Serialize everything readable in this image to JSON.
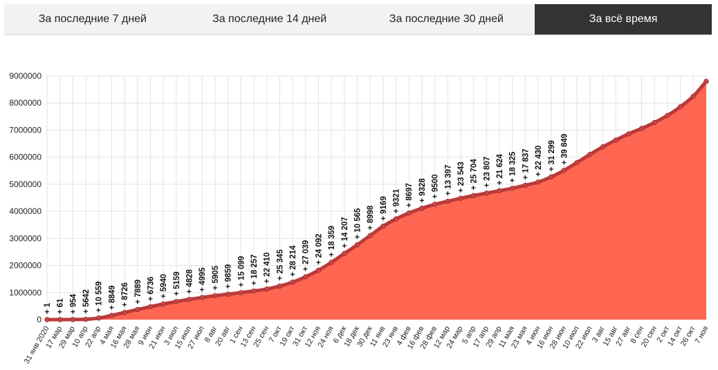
{
  "tabs": [
    {
      "label": "За последние 7 дней",
      "active": false
    },
    {
      "label": "За последние 14 дней",
      "active": false
    },
    {
      "label": "За последние 30 дней",
      "active": false
    },
    {
      "label": "За всё время",
      "active": true
    }
  ],
  "colors": {
    "fill": "#ff6652",
    "line": "#b93a3a",
    "marker": "#c84545",
    "active_tab": "#333333"
  },
  "chart_data": {
    "type": "area",
    "title": "",
    "xlabel": "",
    "ylabel": "",
    "ylim": [
      0,
      9000000
    ],
    "yticks": [
      "0",
      "1000000",
      "2000000",
      "3000000",
      "4000000",
      "5000000",
      "6000000",
      "7000000",
      "8000000",
      "9000000"
    ],
    "grid": true,
    "x": [
      "31 янв 2020",
      "17 мар",
      "29 мар",
      "10 апр",
      "22 апр",
      "4 мая",
      "16 мая",
      "28 мая",
      "9 июн",
      "21 июн",
      "3 июл",
      "15 июл",
      "27 июл",
      "8 авг",
      "20 авг",
      "1 сен",
      "13 сен",
      "25 сен",
      "7 окт",
      "19 окт",
      "31 окт",
      "12 ноя",
      "24 ноя",
      "6 дек",
      "18 дек",
      "30 дек",
      "11 янв",
      "23 янв",
      "4 фев",
      "16 фев",
      "28 фев",
      "12 мар",
      "24 мар",
      "5 апр",
      "17 апр",
      "29 апр",
      "11 мая",
      "23 мая",
      "4 июн",
      "16 июн",
      "28 июн",
      "10 июл",
      "22 июл",
      "3 авг",
      "15 авг",
      "27 авг",
      "8 сен",
      "20 сен",
      "2 окт",
      "14 окт",
      "26 окт",
      "7 ноя"
    ],
    "series": [
      {
        "values": [
          1,
          2,
          1836,
          11917,
          57999,
          155370,
          262843,
          370680,
          476658,
          576952,
          667883,
          746369,
          818120,
          882347,
          937321,
          997072,
          1057362,
          1128836,
          1237504,
          1384235,
          1581693,
          1822345,
          2114502,
          2439163,
          2762668,
          3105037,
          3448203,
          3719400,
          3937332,
          4112151,
          4257650,
          4370000,
          4480000,
          4580000,
          4670000,
          4760000,
          4850000,
          4960000,
          5080000,
          5270000,
          5510000,
          5800000,
          6100000,
          6380000,
          6630000,
          6860000,
          7060000,
          7280000,
          7540000,
          7860000,
          8250000,
          8800000
        ]
      }
    ],
    "data_labels": [
      "+ 1",
      "+ 61",
      "+ 954",
      "+ 5642",
      "+ 10 559",
      "+ 8849",
      "+ 8726",
      "+ 7889",
      "+ 6736",
      "+ 5940",
      "+ 5159",
      "+ 4828",
      "+ 4995",
      "+ 5905",
      "+ 9859",
      "+ 15 099",
      "+ 18 257",
      "+ 22 410",
      "+ 25 345",
      "+ 28 214",
      "+ 27 039",
      "+ 24 092",
      "+ 18 359",
      "+ 14 207",
      "+ 10 565",
      "+ 8998",
      "+ 9169",
      "+ 9321",
      "+ 8697",
      "+ 9328",
      "+ 9500",
      "+ 13 397",
      "+ 23 543",
      "+ 25 704",
      "+ 23 807",
      "+ 21 624",
      "+ 18 325",
      "+ 17 837",
      "+ 22 430",
      "+ 31 299",
      "+ 39 849"
    ]
  }
}
